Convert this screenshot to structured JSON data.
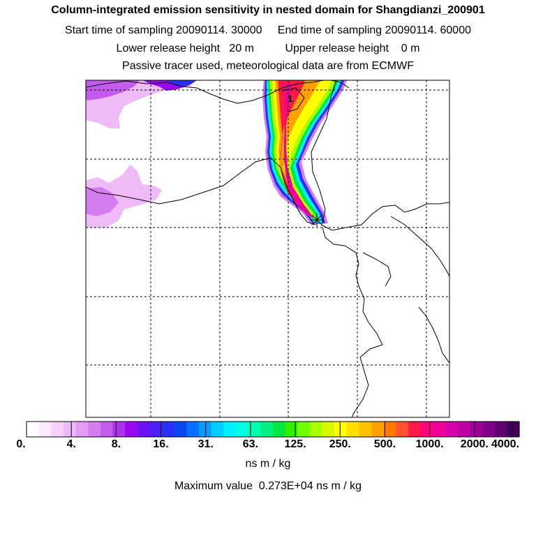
{
  "header": {
    "title": "Column-integrated emission sensitivity in nested domain for Shangdianzi_200901",
    "sampling": "Start time of sampling 20090114. 30000     End time of sampling 20090114. 60000",
    "release": "Lower release height   20 m          Upper release height    0 m",
    "tracer": "Passive tracer used, meteorological data are from ECMWF"
  },
  "chart_data": {
    "type": "heatmap",
    "title": "Column-integrated emission sensitivity in nested domain for Shangdianzi_200901",
    "units": "ns m / kg",
    "scale": "logarithmic",
    "colorbar_ticks": [
      "0.",
      "4.",
      "8.",
      "16.",
      "31.",
      "63.",
      "125.",
      "250.",
      "500.",
      "1000.",
      "2000.",
      "4000."
    ],
    "colorbar_colors": [
      "#ffffff",
      "#fbeafd",
      "#f6d2fb",
      "#eebaf8",
      "#e39bf4",
      "#d47cf0",
      "#c35cee",
      "#b030eb",
      "#9a08f0",
      "#7010f5",
      "#5020f8",
      "#2830f5",
      "#0c48f0",
      "#0870ff",
      "#0c9cff",
      "#00ccff",
      "#00f0ff",
      "#00ffe0",
      "#00ffb0",
      "#00f080",
      "#00e840",
      "#30f000",
      "#70ff00",
      "#a8ff00",
      "#d8f800",
      "#ffff00",
      "#ffe000",
      "#ffc000",
      "#ffa000",
      "#ff7800",
      "#ff5030",
      "#ff1848",
      "#ff0080",
      "#f00098",
      "#d800a8",
      "#c000a8",
      "#a00098",
      "#800088",
      "#600070",
      "#400058"
    ],
    "maximum_value": 2730,
    "maximum_label": "Maximum value  0.273E+04 ns m / kg",
    "receptor_marker": "1"
  }
}
